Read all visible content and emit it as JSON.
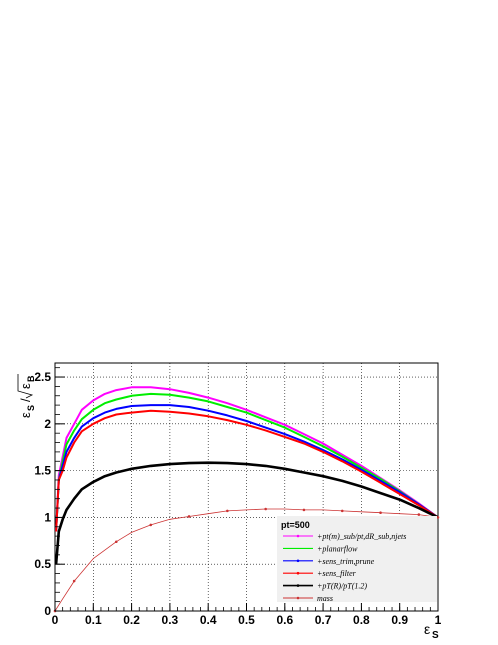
{
  "chart_data": {
    "type": "line",
    "title": "",
    "xlabel_main": "ε",
    "xlabel_sub": "S",
    "ylabel": {
      "num_main": "ε",
      "num_sub": "S",
      "slash": "/",
      "den_main": "ε",
      "den_sub": "B"
    },
    "xlim": [
      0,
      1
    ],
    "ylim": [
      0,
      2.65
    ],
    "xticks": [
      0,
      0.1,
      0.2,
      0.3,
      0.4,
      0.5,
      0.6,
      0.7,
      0.8,
      0.9,
      1
    ],
    "yticks": [
      0,
      0.5,
      1,
      1.5,
      2,
      2.5
    ],
    "xtick_labels": [
      "0",
      "0.1",
      "0.2",
      "0.3",
      "0.4",
      "0.5",
      "0.6",
      "0.7",
      "0.8",
      "0.9",
      "1"
    ],
    "ytick_labels": [
      "0",
      "0.5",
      "1",
      "1.5",
      "2",
      "2.5"
    ],
    "grid": true,
    "legend_position": "bottom-right",
    "legend_header": "pt=500",
    "series": [
      {
        "name": "+pt(m)_sub/pt,dR_sub,njets",
        "color": "#ff00ff",
        "marker": "dot",
        "x": [
          0.003,
          0.01,
          0.02,
          0.03,
          0.05,
          0.07,
          0.1,
          0.13,
          0.16,
          0.2,
          0.25,
          0.3,
          0.35,
          0.4,
          0.45,
          0.5,
          0.55,
          0.6,
          0.65,
          0.7,
          0.75,
          0.8,
          0.85,
          0.9,
          0.95,
          1.0
        ],
        "y": [
          0.85,
          1.45,
          1.65,
          1.85,
          2.0,
          2.15,
          2.25,
          2.32,
          2.36,
          2.39,
          2.39,
          2.37,
          2.33,
          2.28,
          2.22,
          2.15,
          2.07,
          1.99,
          1.89,
          1.79,
          1.67,
          1.55,
          1.42,
          1.29,
          1.15,
          1.0
        ]
      },
      {
        "name": "+planarflow",
        "color": "#00ee00",
        "marker": "none",
        "x": [
          0.003,
          0.01,
          0.02,
          0.03,
          0.05,
          0.07,
          0.1,
          0.13,
          0.16,
          0.2,
          0.25,
          0.3,
          0.35,
          0.4,
          0.45,
          0.5,
          0.55,
          0.6,
          0.65,
          0.7,
          0.75,
          0.8,
          0.85,
          0.9,
          0.95,
          1.0
        ],
        "y": [
          0.85,
          1.4,
          1.6,
          1.78,
          1.93,
          2.05,
          2.15,
          2.22,
          2.26,
          2.3,
          2.32,
          2.31,
          2.28,
          2.24,
          2.18,
          2.12,
          2.04,
          1.96,
          1.86,
          1.76,
          1.65,
          1.53,
          1.41,
          1.28,
          1.14,
          1.0
        ]
      },
      {
        "name": "+sens_trim,prune",
        "color": "#0000ff",
        "marker": "dot",
        "x": [
          0.003,
          0.01,
          0.02,
          0.03,
          0.05,
          0.07,
          0.1,
          0.13,
          0.16,
          0.2,
          0.25,
          0.3,
          0.35,
          0.4,
          0.45,
          0.5,
          0.55,
          0.6,
          0.65,
          0.7,
          0.75,
          0.8,
          0.85,
          0.9,
          0.95,
          1.0
        ],
        "y": [
          0.85,
          1.4,
          1.55,
          1.7,
          1.85,
          1.97,
          2.06,
          2.12,
          2.16,
          2.19,
          2.2,
          2.2,
          2.18,
          2.14,
          2.09,
          2.03,
          1.96,
          1.89,
          1.81,
          1.72,
          1.62,
          1.51,
          1.39,
          1.27,
          1.14,
          1.0
        ]
      },
      {
        "name": "+sens_filter",
        "color": "#ff0000",
        "marker": "dot",
        "x": [
          0.003,
          0.01,
          0.02,
          0.03,
          0.05,
          0.07,
          0.1,
          0.13,
          0.16,
          0.2,
          0.25,
          0.3,
          0.35,
          0.4,
          0.45,
          0.5,
          0.55,
          0.6,
          0.65,
          0.7,
          0.75,
          0.8,
          0.85,
          0.9,
          0.95,
          1.0
        ],
        "y": [
          0.85,
          1.4,
          1.5,
          1.64,
          1.8,
          1.92,
          2.0,
          2.06,
          2.1,
          2.12,
          2.14,
          2.13,
          2.11,
          2.08,
          2.04,
          1.99,
          1.93,
          1.86,
          1.79,
          1.7,
          1.6,
          1.49,
          1.37,
          1.25,
          1.13,
          1.0
        ]
      },
      {
        "name": "+pT(R)/pT(1.2)",
        "color": "#000000",
        "marker": "dot",
        "x": [
          0.003,
          0.01,
          0.02,
          0.03,
          0.05,
          0.07,
          0.1,
          0.13,
          0.16,
          0.2,
          0.25,
          0.3,
          0.35,
          0.4,
          0.45,
          0.5,
          0.55,
          0.6,
          0.65,
          0.7,
          0.75,
          0.8,
          0.85,
          0.9,
          0.95,
          1.0
        ],
        "y": [
          0.5,
          0.85,
          0.98,
          1.08,
          1.2,
          1.3,
          1.38,
          1.44,
          1.48,
          1.52,
          1.55,
          1.57,
          1.58,
          1.585,
          1.58,
          1.57,
          1.55,
          1.52,
          1.48,
          1.44,
          1.39,
          1.33,
          1.26,
          1.19,
          1.1,
          1.0
        ]
      },
      {
        "name": "mass",
        "color": "#cc3333",
        "marker": "dot",
        "x": [
          0.0,
          0.02,
          0.05,
          0.1,
          0.16,
          0.2,
          0.25,
          0.3,
          0.35,
          0.4,
          0.45,
          0.5,
          0.55,
          0.6,
          0.65,
          0.7,
          0.75,
          0.8,
          0.85,
          0.9,
          0.95,
          1.0
        ],
        "y": [
          0.0,
          0.13,
          0.32,
          0.56,
          0.74,
          0.84,
          0.92,
          0.98,
          1.01,
          1.04,
          1.07,
          1.08,
          1.09,
          1.09,
          1.08,
          1.08,
          1.07,
          1.06,
          1.05,
          1.04,
          1.03,
          1.0
        ]
      }
    ]
  }
}
